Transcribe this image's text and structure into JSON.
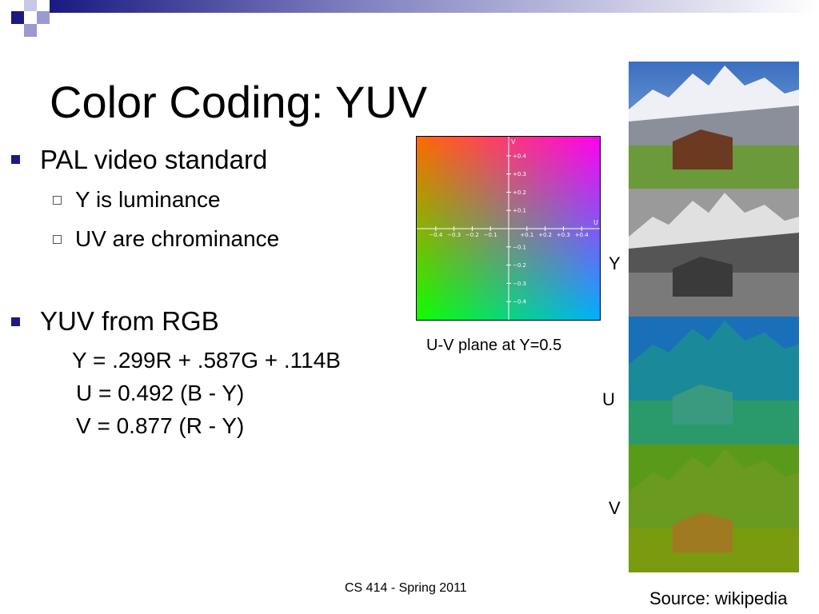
{
  "title": "Color Coding: YUV",
  "bullets": [
    {
      "text": "PAL video standard",
      "sub": [
        "Y is luminance",
        "UV are chrominance"
      ]
    },
    {
      "text": "YUV from RGB",
      "equations": [
        "Y = .299R + .587G + .114B",
        "U = 0.492 (B - Y)",
        "V = 0.877 (R - Y)"
      ]
    }
  ],
  "uv_plane": {
    "caption": "U-V plane at Y=0.5",
    "u_axis": "U",
    "v_axis": "V",
    "u_ticks": [
      "−0.4",
      "−0.3",
      "−0.2",
      "−0.1",
      "+0.1",
      "+0.2",
      "+0.3",
      "+0.4"
    ],
    "v_ticks": [
      "+0.4",
      "+0.3",
      "+0.2",
      "+0.1",
      "−0.1",
      "−0.2",
      "−0.3",
      "−0.4"
    ]
  },
  "image_labels": [
    "Y",
    "U",
    "V"
  ],
  "footer": "CS 414 - Spring 2011",
  "source": "Source: wikipedia"
}
